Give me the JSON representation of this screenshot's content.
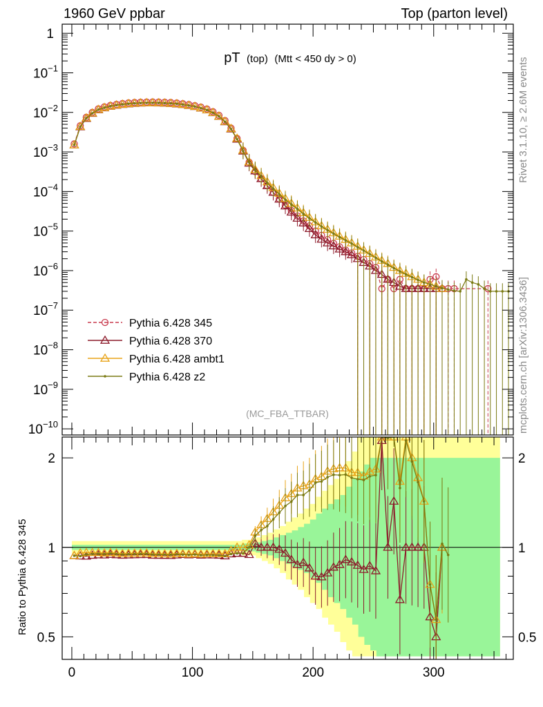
{
  "header": {
    "left": "1960 GeV ppbar",
    "right": "Top (parton level)"
  },
  "side": {
    "rivet": "Rivet 3.1.10, ≥ 2.6M events",
    "mcplots": "mcplots.cern.ch [arXiv:1306.3436]"
  },
  "chart_data": {
    "title": "pT (top) (Mtt < 450 dy > 0)",
    "title_main": "pT",
    "title_sub1": "(top)",
    "title_sub2": "(Mtt < 450 dy > 0)",
    "watermark": "(MC_FBA_TTBAR)",
    "type": "line",
    "main": {
      "yscale": "log",
      "xlim": [
        -8,
        366
      ],
      "ylim": [
        7e-11,
        1.7
      ],
      "ytick_labels": [
        {
          "v": 1,
          "base": "1",
          "exp": ""
        },
        {
          "v": 0.1,
          "base": "10",
          "exp": "−1"
        },
        {
          "v": 0.01,
          "base": "10",
          "exp": "−2"
        },
        {
          "v": 0.001,
          "base": "10",
          "exp": "−3"
        },
        {
          "v": 0.0001,
          "base": "10",
          "exp": "−4"
        },
        {
          "v": 1e-05,
          "base": "10",
          "exp": "−5"
        },
        {
          "v": 1e-06,
          "base": "10",
          "exp": "−6"
        },
        {
          "v": 1e-07,
          "base": "10",
          "exp": "−7"
        },
        {
          "v": 1e-08,
          "base": "10",
          "exp": "−8"
        },
        {
          "v": 1e-09,
          "base": "10",
          "exp": "−9"
        },
        {
          "v": 1e-10,
          "base": "10",
          "exp": "−10"
        }
      ]
    },
    "ratio": {
      "ylabel": "Ratio to Pythia 6.428 345",
      "yscale": "log",
      "ylim": [
        0.42,
        2.35
      ],
      "ytick_labels": [
        {
          "v": 0.5,
          "label": "0.5"
        },
        {
          "v": 1,
          "label": "1"
        },
        {
          "v": 2,
          "label": "2"
        }
      ],
      "x": [
        12,
        32,
        52,
        72,
        92,
        112,
        132,
        150,
        155,
        160,
        165,
        170,
        175,
        180,
        185,
        190,
        195,
        200,
        205,
        210,
        215,
        220,
        225,
        230,
        235,
        240,
        245,
        250,
        255,
        260,
        265,
        270,
        275,
        280,
        285,
        290,
        295,
        300,
        305,
        310,
        340,
        350
      ],
      "band_green": [
        [
          1.02,
          0.98
        ],
        [
          1.02,
          0.98
        ],
        [
          1.02,
          0.98
        ],
        [
          1.02,
          0.98
        ],
        [
          1.02,
          0.98
        ],
        [
          1.02,
          0.98
        ],
        [
          1.02,
          0.98
        ],
        [
          1.03,
          0.97
        ],
        [
          1.04,
          0.96
        ],
        [
          1.05,
          0.95
        ],
        [
          1.06,
          0.94
        ],
        [
          1.08,
          0.92
        ],
        [
          1.1,
          0.9
        ],
        [
          1.12,
          0.88
        ],
        [
          1.14,
          0.86
        ],
        [
          1.17,
          0.84
        ],
        [
          1.2,
          0.82
        ],
        [
          1.24,
          0.79
        ],
        [
          1.3,
          0.76
        ],
        [
          1.35,
          0.72
        ],
        [
          1.4,
          0.68
        ],
        [
          1.45,
          0.65
        ],
        [
          1.5,
          0.62
        ],
        [
          1.6,
          0.58
        ],
        [
          1.7,
          0.55
        ],
        [
          1.8,
          0.5
        ],
        [
          1.9,
          0.47
        ],
        [
          2.0,
          0.45
        ],
        [
          2.0,
          0.43
        ],
        [
          2.0,
          0.43
        ],
        [
          2.0,
          0.43
        ],
        [
          2.0,
          0.43
        ],
        [
          2.0,
          0.43
        ],
        [
          2.0,
          0.43
        ],
        [
          2.0,
          0.43
        ],
        [
          2.0,
          0.43
        ],
        [
          2.0,
          0.43
        ],
        [
          2.0,
          0.43
        ],
        [
          2.0,
          0.43
        ],
        [
          2.0,
          0.43
        ],
        [
          2.0,
          0.43
        ],
        [
          2.0,
          0.43
        ]
      ],
      "band_yellow": [
        [
          1.05,
          0.95
        ],
        [
          1.05,
          0.95
        ],
        [
          1.05,
          0.95
        ],
        [
          1.05,
          0.95
        ],
        [
          1.05,
          0.95
        ],
        [
          1.05,
          0.95
        ],
        [
          1.05,
          0.95
        ],
        [
          1.06,
          0.94
        ],
        [
          1.08,
          0.92
        ],
        [
          1.1,
          0.9
        ],
        [
          1.12,
          0.88
        ],
        [
          1.15,
          0.85
        ],
        [
          1.18,
          0.82
        ],
        [
          1.22,
          0.78
        ],
        [
          1.26,
          0.75
        ],
        [
          1.3,
          0.72
        ],
        [
          1.35,
          0.68
        ],
        [
          1.4,
          0.65
        ],
        [
          1.48,
          0.62
        ],
        [
          1.55,
          0.58
        ],
        [
          1.62,
          0.55
        ],
        [
          1.7,
          0.52
        ],
        [
          1.8,
          0.48
        ],
        [
          1.95,
          0.45
        ],
        [
          2.1,
          0.43
        ],
        [
          2.35,
          0.43
        ],
        [
          2.35,
          0.43
        ],
        [
          2.35,
          0.43
        ],
        [
          2.35,
          0.43
        ],
        [
          2.35,
          0.43
        ],
        [
          2.35,
          0.43
        ],
        [
          2.35,
          0.43
        ],
        [
          2.35,
          0.43
        ],
        [
          2.35,
          0.43
        ],
        [
          2.35,
          0.43
        ],
        [
          2.35,
          0.43
        ],
        [
          2.35,
          0.43
        ],
        [
          2.35,
          0.43
        ],
        [
          2.35,
          0.43
        ],
        [
          2.35,
          0.43
        ],
        [
          2.35,
          0.43
        ],
        [
          2.35,
          0.43
        ]
      ]
    },
    "xtick_labels": [
      0,
      100,
      200,
      300
    ],
    "xlim": [
      -8,
      366
    ],
    "series": [
      {
        "name": "Pythia 6.428 345",
        "color": "#c8394d",
        "dash": "5,3",
        "marker": "circle",
        "x": [
          2,
          7,
          12,
          17,
          22,
          27,
          32,
          37,
          42,
          47,
          52,
          57,
          62,
          67,
          72,
          77,
          82,
          87,
          92,
          97,
          102,
          107,
          112,
          117,
          122,
          127,
          132,
          137,
          142,
          147,
          152,
          157,
          162,
          167,
          172,
          177,
          182,
          187,
          192,
          197,
          202,
          207,
          212,
          217,
          222,
          227,
          232,
          237,
          242,
          247,
          252,
          257,
          262,
          267,
          272,
          277,
          282,
          287,
          292,
          297,
          302,
          307,
          312,
          317,
          345
        ],
        "y": [
          0.0016,
          0.0046,
          0.0075,
          0.01,
          0.0123,
          0.0138,
          0.015,
          0.016,
          0.0168,
          0.0174,
          0.0178,
          0.0181,
          0.0183,
          0.0184,
          0.0183,
          0.0181,
          0.0178,
          0.0173,
          0.0166,
          0.0158,
          0.0148,
          0.0136,
          0.0122,
          0.0104,
          0.0084,
          0.0062,
          0.004,
          0.0022,
          0.0011,
          0.00055,
          0.00032,
          0.00021,
          0.00014,
          9.5e-05,
          6.5e-05,
          4.5e-05,
          3.3e-05,
          2.4e-05,
          1.8e-05,
          1.35e-05,
          1e-05,
          7.8e-06,
          6.1e-06,
          4.9e-06,
          4e-06,
          3.3e-06,
          2.8e-06,
          2.3e-06,
          1.9e-06,
          1.5e-06,
          1.2e-06,
          3.5e-07,
          6e-07,
          3.5e-07,
          6e-07,
          3.5e-07,
          3.5e-07,
          3.5e-07,
          3.5e-07,
          6e-07,
          7e-07,
          3.5e-07,
          3.5e-07,
          3.5e-07,
          3.5e-07
        ]
      },
      {
        "name": "Pythia 6.428 370",
        "color": "#8c1a2a",
        "dash": "",
        "marker": "triangle",
        "x": [
          2,
          7,
          12,
          17,
          22,
          27,
          32,
          37,
          42,
          47,
          52,
          57,
          62,
          67,
          72,
          77,
          82,
          87,
          92,
          97,
          102,
          107,
          112,
          117,
          122,
          127,
          132,
          137,
          142,
          147,
          152,
          157,
          162,
          167,
          172,
          177,
          182,
          187,
          192,
          197,
          202,
          207,
          212,
          217,
          222,
          227,
          232,
          237,
          242,
          247,
          252,
          257,
          262,
          267,
          272,
          277,
          282,
          287,
          292,
          297,
          302,
          307
        ],
        "y": [
          0.0015,
          0.0043,
          0.007,
          0.0094,
          0.0116,
          0.013,
          0.0142,
          0.0151,
          0.0158,
          0.0164,
          0.0168,
          0.0171,
          0.0173,
          0.0173,
          0.0172,
          0.017,
          0.0167,
          0.0163,
          0.0157,
          0.0149,
          0.014,
          0.0128,
          0.0115,
          0.0098,
          0.0079,
          0.0058,
          0.0038,
          0.0021,
          0.00105,
          0.00052,
          0.00033,
          0.00021,
          0.00014,
          9.5e-05,
          6.4e-05,
          4.3e-05,
          3e-05,
          2.1e-05,
          1.6e-05,
          1.15e-05,
          8e-06,
          6.2e-06,
          5e-06,
          4.2e-06,
          3.5e-06,
          3e-06,
          2.5e-06,
          2e-06,
          1.6e-06,
          1.3e-06,
          1e-06,
          8e-07,
          6e-07,
          5e-07,
          4e-07,
          3.5e-07,
          3.5e-07,
          3.5e-07,
          3.5e-07,
          3.5e-07,
          3.5e-07,
          3.5e-07
        ]
      },
      {
        "name": "Pythia 6.428 ambt1",
        "color": "#e8a317",
        "dash": "",
        "marker": "triangle",
        "x": [
          2,
          7,
          12,
          17,
          22,
          27,
          32,
          37,
          42,
          47,
          52,
          57,
          62,
          67,
          72,
          77,
          82,
          87,
          92,
          97,
          102,
          107,
          112,
          117,
          122,
          127,
          132,
          137,
          142,
          147,
          152,
          157,
          162,
          167,
          172,
          177,
          182,
          187,
          192,
          197,
          202,
          207,
          212,
          217,
          222,
          227,
          232,
          237,
          242,
          247,
          252,
          257,
          262,
          267,
          272,
          277,
          282,
          287,
          292,
          297,
          302,
          307
        ],
        "y": [
          0.0015,
          0.0044,
          0.0072,
          0.0096,
          0.0118,
          0.0132,
          0.0144,
          0.0153,
          0.016,
          0.0166,
          0.017,
          0.0173,
          0.0175,
          0.0175,
          0.0174,
          0.0172,
          0.0169,
          0.0165,
          0.0158,
          0.015,
          0.0141,
          0.0129,
          0.0116,
          0.0099,
          0.008,
          0.0059,
          0.0039,
          0.0022,
          0.0011,
          0.00056,
          0.00036,
          0.00025,
          0.000175,
          0.000125,
          9e-05,
          6.6e-05,
          5e-05,
          3.8e-05,
          2.9e-05,
          2.2e-05,
          1.7e-05,
          1.35e-05,
          1.1e-05,
          9e-06,
          7.4e-06,
          6.1e-06,
          5e-06,
          4.1e-06,
          3.3e-06,
          2.7e-06,
          2.2e-06,
          1.8e-06,
          1.5e-06,
          1.2e-06,
          1e-06,
          8.5e-07,
          7e-07,
          6e-07,
          5e-07,
          4.5e-07,
          4e-07,
          3.5e-07
        ]
      },
      {
        "name": "Pythia 6.428 z2",
        "color": "#7a7a12",
        "dash": "",
        "marker": "dot",
        "x": [
          2,
          7,
          12,
          17,
          22,
          27,
          32,
          37,
          42,
          47,
          52,
          57,
          62,
          67,
          72,
          77,
          82,
          87,
          92,
          97,
          102,
          107,
          112,
          117,
          122,
          127,
          132,
          137,
          142,
          147,
          152,
          157,
          162,
          167,
          172,
          177,
          182,
          187,
          192,
          197,
          202,
          207,
          212,
          217,
          222,
          227,
          232,
          237,
          242,
          247,
          252,
          257,
          262,
          267,
          272,
          277,
          282,
          287,
          292,
          297,
          302,
          307,
          312,
          317,
          322,
          327,
          332,
          337,
          342,
          347,
          352,
          357,
          362
        ],
        "y": [
          0.0015,
          0.0043,
          0.0071,
          0.0095,
          0.0117,
          0.0131,
          0.0143,
          0.0152,
          0.0159,
          0.0165,
          0.0169,
          0.0172,
          0.0174,
          0.0174,
          0.0173,
          0.0171,
          0.0168,
          0.0164,
          0.0157,
          0.0149,
          0.014,
          0.0128,
          0.0115,
          0.0098,
          0.0079,
          0.0058,
          0.0038,
          0.0021,
          0.00105,
          0.00055,
          0.00035,
          0.00024,
          0.000165,
          0.000118,
          8.5e-05,
          6.2e-05,
          4.7e-05,
          3.6e-05,
          2.7e-05,
          2.1e-05,
          1.65e-05,
          1.3e-05,
          1.05e-05,
          8.6e-06,
          7e-06,
          5.8e-06,
          4.8e-06,
          3.9e-06,
          3.2e-06,
          2.6e-06,
          2.1e-06,
          1.7e-06,
          1.4e-06,
          1.15e-06,
          9.5e-07,
          8e-07,
          6.8e-07,
          5.8e-07,
          5e-07,
          4.5e-07,
          4e-07,
          3.6e-07,
          3.3e-07,
          3.1e-07,
          3e-07,
          6e-07,
          5e-07,
          4.5e-07,
          3.5e-07,
          3e-07,
          3e-07,
          3e-07,
          3e-07
        ]
      }
    ]
  }
}
